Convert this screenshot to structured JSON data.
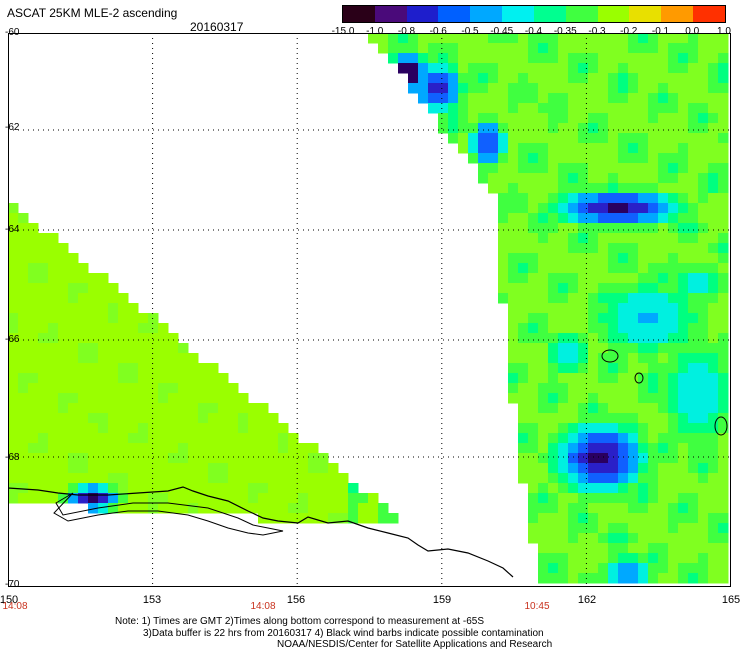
{
  "header": {
    "title": "ASCAT 25KM MLE-2 ascending",
    "date": "20160317"
  },
  "colorbar": {
    "labels": [
      "-15.0",
      "-1.0",
      "-0.8",
      "-0.6",
      "-0.5",
      "-0.45",
      "-0.4",
      "-0.35",
      "-0.3",
      "-0.2",
      "-0.1",
      "0.0",
      "1.0"
    ],
    "colors": [
      "#2a0018",
      "#4a0a7a",
      "#1e1ecc",
      "#0060ff",
      "#00a8ff",
      "#00f0f0",
      "#00ff90",
      "#40ff40",
      "#9aff00",
      "#e8e000",
      "#ff9a00",
      "#ff3000"
    ]
  },
  "map": {
    "lat_labels": [
      "-60",
      "-62",
      "-64",
      "-66",
      "-68",
      "-70"
    ],
    "lon_labels": [
      "150",
      "153",
      "156",
      "159",
      "162",
      "165"
    ],
    "time_labels": [
      "14:08",
      "14:08",
      "10:45"
    ]
  },
  "notes": {
    "line1": "Note: 1) Times are GMT 2)Times along bottom correspond to measurement at -65S",
    "line2": "3)Data buffer is 22 hrs from 20160317 4) Black wind barbs indicate possible contamination",
    "line3": "NOAA/NESDIS/Center for Satellite Applications and Research"
  }
}
